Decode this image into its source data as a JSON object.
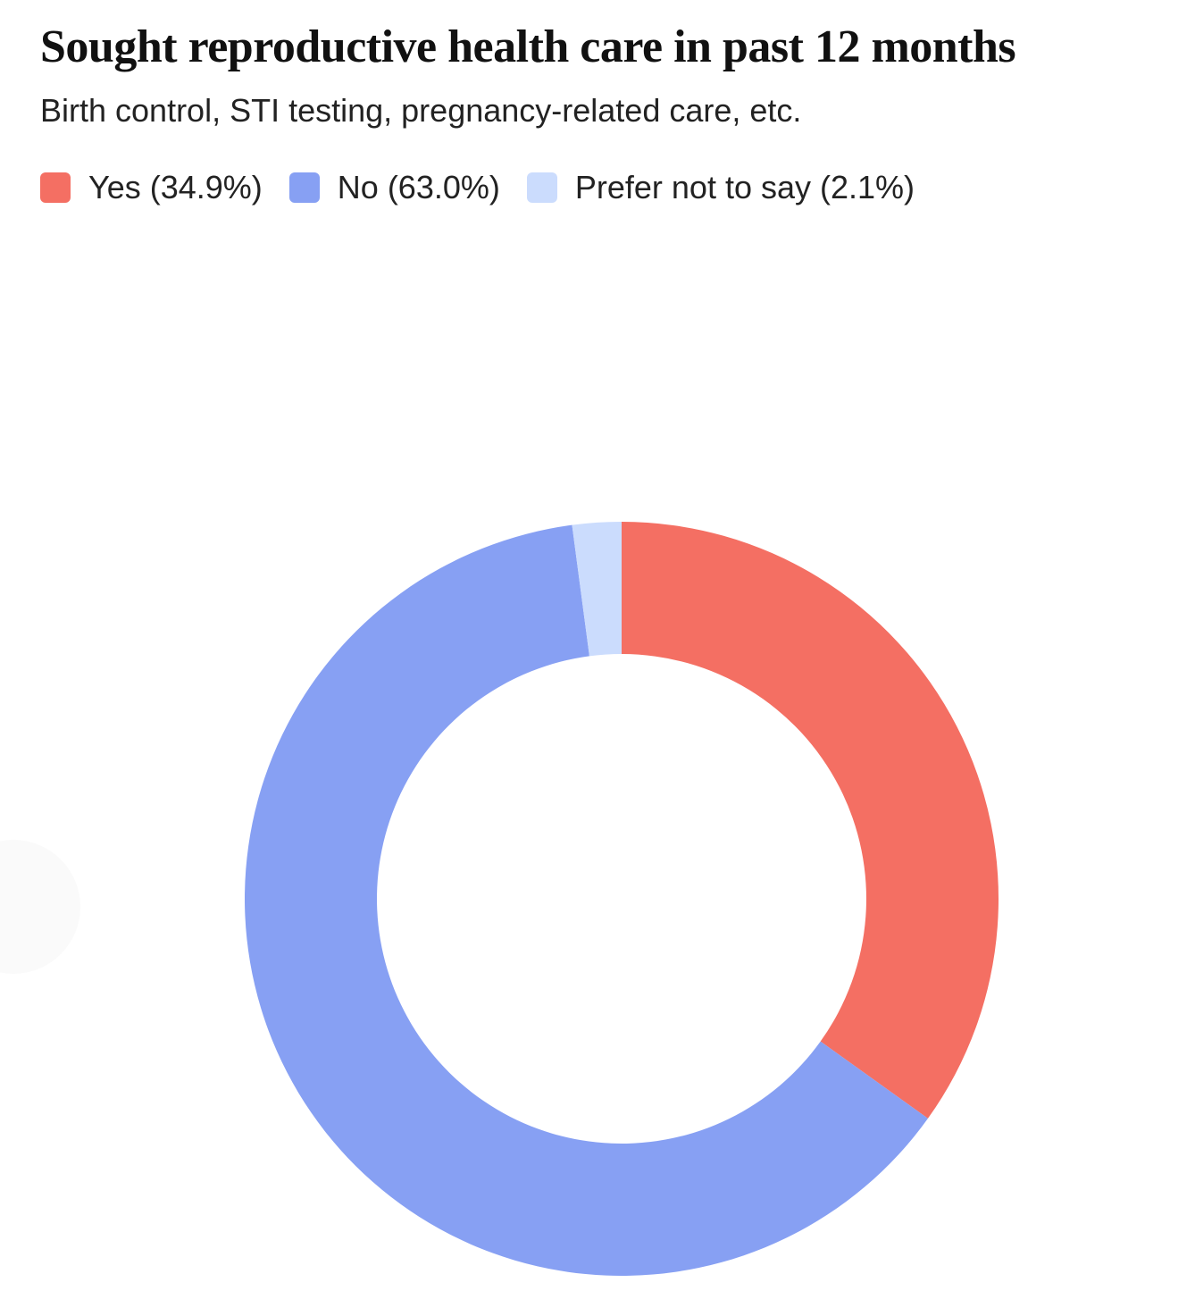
{
  "title": "Sought reproductive health care in past 12 months",
  "subtitle": "Birth control, STI testing, pregnancy-related care, etc.",
  "legend": {
    "items": [
      {
        "label": "Yes (34.9%)",
        "color": "#f46f63"
      },
      {
        "label": "No (63.0%)",
        "color": "#87a0f3"
      },
      {
        "label": "Prefer not to say (2.1%)",
        "color": "#cbdcfd"
      }
    ]
  },
  "chart_data": {
    "type": "pie",
    "variant": "donut",
    "title": "Sought reproductive health care in past 12 months",
    "subtitle": "Birth control, STI testing, pregnancy-related care, etc.",
    "categories": [
      "Yes",
      "No",
      "Prefer not to say"
    ],
    "values": [
      34.9,
      63.0,
      2.1
    ],
    "unit": "%",
    "colors": [
      "#f46f63",
      "#87a0f3",
      "#cbdcfd"
    ],
    "start_angle": "12 o'clock",
    "direction": "clockwise",
    "legend_position": "top-left"
  }
}
